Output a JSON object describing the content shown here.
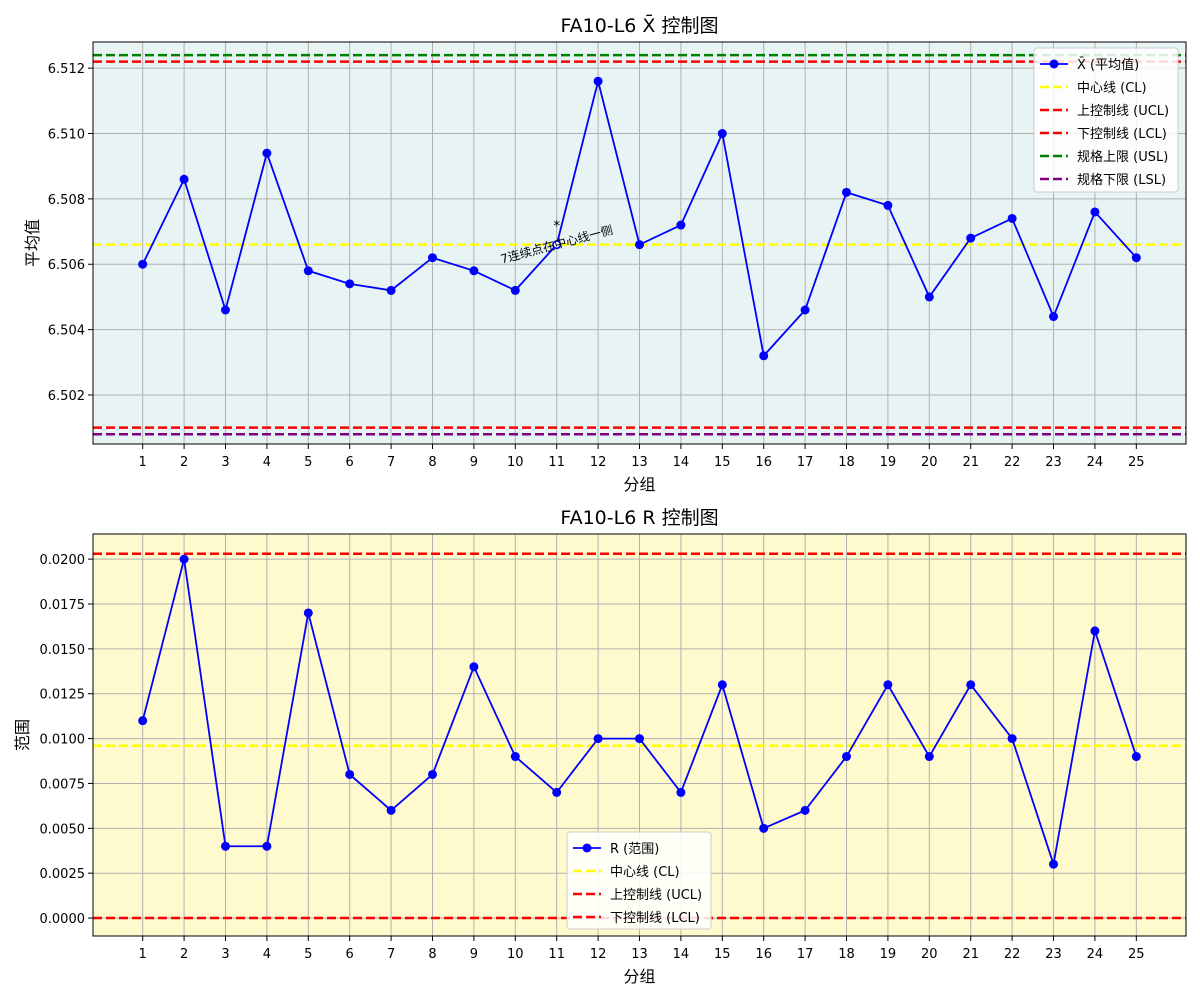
{
  "chart_data": [
    {
      "type": "line",
      "title": "FA10-L6 X̄ 控制图",
      "xlabel": "分组",
      "ylabel": "平均值",
      "background": "#e8f4f4",
      "x": [
        1,
        2,
        3,
        4,
        5,
        6,
        7,
        8,
        9,
        10,
        11,
        12,
        13,
        14,
        15,
        16,
        17,
        18,
        19,
        20,
        21,
        22,
        23,
        24,
        25
      ],
      "xlim": [
        -0.2,
        26.2
      ],
      "ylim": [
        6.5005,
        6.5128
      ],
      "yticks": [
        6.502,
        6.504,
        6.506,
        6.508,
        6.51,
        6.512
      ],
      "ytick_labels": [
        "6.502",
        "6.504",
        "6.506",
        "6.508",
        "6.510",
        "6.512"
      ],
      "grid": true,
      "series": [
        {
          "name": "X̄ (平均值)",
          "color": "#0000ff",
          "marker": "circle",
          "values": [
            6.506,
            6.5086,
            6.5046,
            6.5094,
            6.5058,
            6.5054,
            6.5052,
            6.5062,
            6.5058,
            6.5052,
            6.5066,
            6.5116,
            6.5066,
            6.5072,
            6.51,
            6.5032,
            6.5046,
            6.5082,
            6.5078,
            6.505,
            6.5068,
            6.5074,
            6.5044,
            6.5076,
            6.5062
          ]
        }
      ],
      "hlines": [
        {
          "name": "中心线 (CL)",
          "value": 6.5066,
          "color": "#ffff00"
        },
        {
          "name": "上控制线 (UCL)",
          "value": 6.5122,
          "color": "#ff0000"
        },
        {
          "name": "下控制线 (LCL)",
          "value": 6.501,
          "color": "#ff0000"
        },
        {
          "name": "规格上限 (USL)",
          "value": 6.5124,
          "color": "#008000"
        },
        {
          "name": "规格下限 (LSL)",
          "value": 6.5008,
          "color": "#800080"
        }
      ],
      "annotation": {
        "text": "7连续点在中心线一侧",
        "marker": "*",
        "x": 11,
        "y": 6.5066,
        "color": "#ff0000"
      },
      "legend": "upper right"
    },
    {
      "type": "line",
      "title": "FA10-L6 R 控制图",
      "xlabel": "分组",
      "ylabel": "范围",
      "background": "#fffacd",
      "x": [
        1,
        2,
        3,
        4,
        5,
        6,
        7,
        8,
        9,
        10,
        11,
        12,
        13,
        14,
        15,
        16,
        17,
        18,
        19,
        20,
        21,
        22,
        23,
        24,
        25
      ],
      "xlim": [
        -0.2,
        26.2
      ],
      "ylim": [
        -0.001,
        0.0214
      ],
      "yticks": [
        0.0,
        0.0025,
        0.005,
        0.0075,
        0.01,
        0.0125,
        0.015,
        0.0175,
        0.02
      ],
      "ytick_labels": [
        "0.0000",
        "0.0025",
        "0.0050",
        "0.0075",
        "0.0100",
        "0.0125",
        "0.0150",
        "0.0175",
        "0.0200"
      ],
      "grid": true,
      "series": [
        {
          "name": "R (范围)",
          "color": "#0000ff",
          "marker": "circle",
          "values": [
            0.011,
            0.02,
            0.004,
            0.004,
            0.017,
            0.008,
            0.006,
            0.008,
            0.014,
            0.009,
            0.007,
            0.01,
            0.01,
            0.007,
            0.013,
            0.005,
            0.006,
            0.009,
            0.013,
            0.009,
            0.013,
            0.01,
            0.003,
            0.016,
            0.009
          ]
        }
      ],
      "hlines": [
        {
          "name": "中心线 (CL)",
          "value": 0.0096,
          "color": "#ffff00"
        },
        {
          "name": "上控制线 (UCL)",
          "value": 0.0203,
          "color": "#ff0000"
        },
        {
          "name": "下控制线 (LCL)",
          "value": 0.0,
          "color": "#ff0000"
        }
      ],
      "legend": "lower center"
    }
  ]
}
